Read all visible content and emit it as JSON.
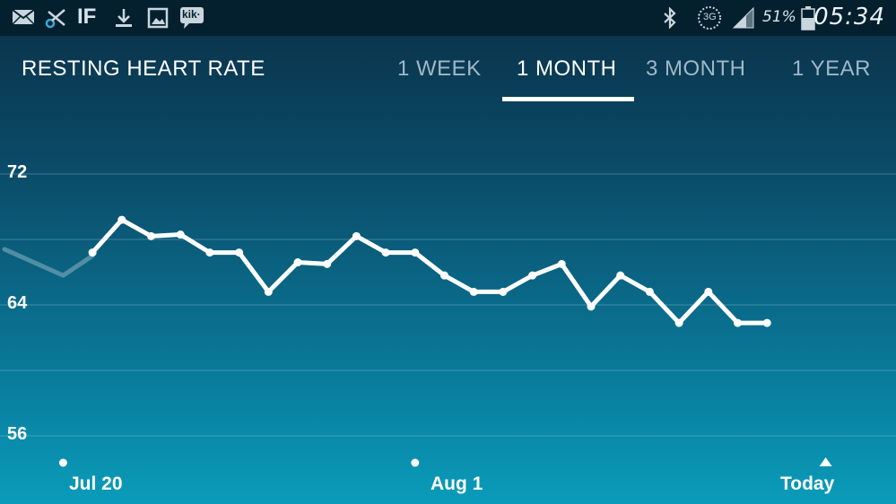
{
  "status_bar": {
    "icons": [
      "mail-icon",
      "scissors-icon",
      "ifttt-icon",
      "download-icon",
      "gallery-icon",
      "kik-icon",
      "bluetooth-icon",
      "3g-icon",
      "signal-icon",
      "battery-icon"
    ],
    "kik_text": "kik·",
    "ifttt_text": "IF",
    "network_text": "3G",
    "battery_percent": "51%",
    "time": "05:34"
  },
  "header": {
    "title": "RESTING HEART RATE",
    "tabs": [
      {
        "label": "1 WEEK",
        "active": false
      },
      {
        "label": "1 MONTH",
        "active": true
      },
      {
        "label": "3 MONTH",
        "active": false
      },
      {
        "label": "1 YEAR",
        "active": false
      }
    ]
  },
  "chart_data": {
    "type": "line",
    "y_ticks": [
      "72",
      "64",
      "56"
    ],
    "x_ticks": [
      "Jul 20",
      "Aug 1",
      "Today"
    ],
    "ylim": [
      56,
      72
    ],
    "grid": true,
    "x_unit": "day index (0 = Jul 18)",
    "faded_lead_in": [
      {
        "x": 0,
        "y": 67.4
      },
      {
        "x": 2,
        "y": 65.8
      },
      {
        "x": 3,
        "y": 67.0
      }
    ],
    "series": [
      {
        "points": [
          {
            "x": 3,
            "y": 67.2
          },
          {
            "x": 4,
            "y": 69.2
          },
          {
            "x": 5,
            "y": 68.2
          },
          {
            "x": 6,
            "y": 68.3
          },
          {
            "x": 7,
            "y": 67.2
          },
          {
            "x": 8,
            "y": 67.2
          },
          {
            "x": 9,
            "y": 64.8
          },
          {
            "x": 10,
            "y": 66.6
          },
          {
            "x": 11,
            "y": 66.5
          },
          {
            "x": 12,
            "y": 68.2
          },
          {
            "x": 13,
            "y": 67.2
          },
          {
            "x": 14,
            "y": 67.2
          },
          {
            "x": 15,
            "y": 65.8
          },
          {
            "x": 16,
            "y": 64.8
          },
          {
            "x": 17,
            "y": 64.8
          },
          {
            "x": 18,
            "y": 65.8
          },
          {
            "x": 19,
            "y": 66.5
          },
          {
            "x": 20,
            "y": 63.9
          },
          {
            "x": 21,
            "y": 65.8
          },
          {
            "x": 22,
            "y": 64.8
          },
          {
            "x": 23,
            "y": 62.9
          },
          {
            "x": 24,
            "y": 64.8
          },
          {
            "x": 25,
            "y": 62.9
          },
          {
            "x": 26,
            "y": 62.9
          }
        ]
      }
    ],
    "x_tick_positions": [
      2,
      14,
      28
    ]
  }
}
